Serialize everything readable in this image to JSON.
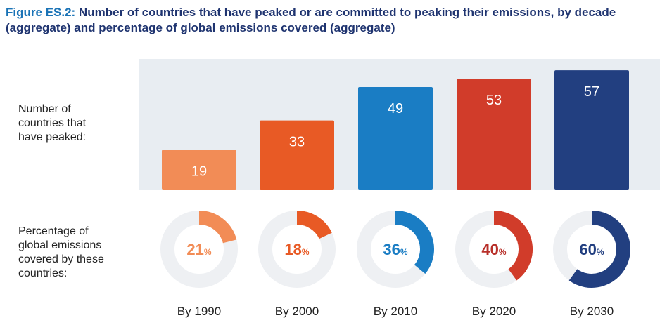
{
  "figure": {
    "label": "Figure ES.2:",
    "title": " Number of countries that have peaked or are committed to peaking their emissions, by decade (aggregate) and percentage of global emissions covered (aggregate)"
  },
  "labels": {
    "peaked": "Number of\ncountries that\nhave peaked:",
    "percentage": "Percentage of\nglobal emissions\ncovered by these\ncountries:"
  },
  "chart_data": {
    "type": "bar",
    "categories": [
      "By 1990",
      "By 2000",
      "By 2010",
      "By 2020",
      "By 2030"
    ],
    "values": [
      19,
      33,
      49,
      53,
      57
    ],
    "ylim": [
      0,
      60
    ],
    "colors": [
      "#f28c56",
      "#e85a25",
      "#1a7dc4",
      "#d13c2a",
      "#223f80"
    ],
    "background": "#e8edf2",
    "percent_covered": [
      21,
      18,
      36,
      40,
      60
    ],
    "percent_unit": "%",
    "donut_track_color": "#eef0f3",
    "percent_text_colors": [
      "#f28c56",
      "#e85a25",
      "#1a7dc4",
      "#b8302a",
      "#223f80"
    ]
  }
}
